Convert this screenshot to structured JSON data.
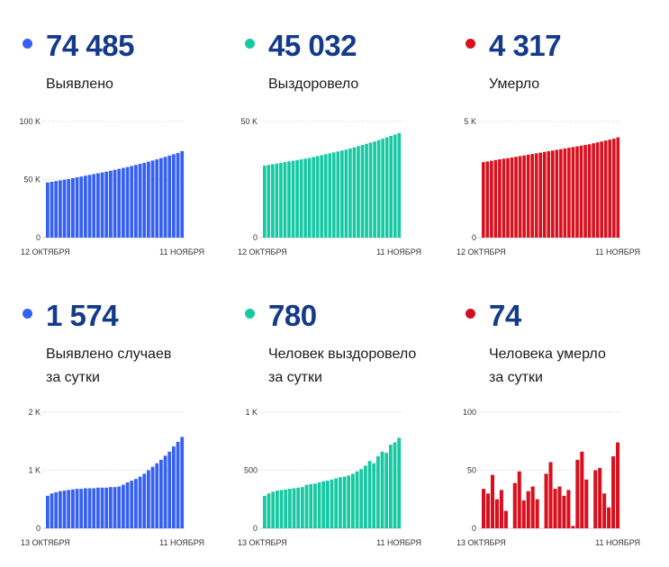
{
  "panels": [
    {
      "id": "cases-total",
      "color": "#3560f0",
      "value": "74 485",
      "label": [
        "Выявлено"
      ],
      "chart_data": {
        "type": "bar",
        "ylim": [
          0,
          100000
        ],
        "y_ticks": [
          {
            "value": 0,
            "label": "0"
          },
          {
            "value": 50000,
            "label": "50 K"
          },
          {
            "value": 100000,
            "label": "100 K"
          }
        ],
        "x_labels": [
          "12 ОКТЯБРЯ",
          "11 НОЯБРЯ"
        ],
        "values": [
          47500,
          48100,
          48700,
          49300,
          49900,
          50500,
          51200,
          51900,
          52600,
          53300,
          54000,
          54700,
          55400,
          56100,
          56800,
          57600,
          58400,
          59200,
          60000,
          60800,
          61700,
          62600,
          63500,
          64400,
          65400,
          66400,
          67400,
          68500,
          69600,
          70700,
          71800,
          72900,
          74485
        ]
      }
    },
    {
      "id": "recovered-total",
      "color": "#16c9a3",
      "value": "45 032",
      "label": [
        "Выздоровело"
      ],
      "chart_data": {
        "type": "bar",
        "ylim": [
          0,
          50000
        ],
        "y_ticks": [
          {
            "value": 0,
            "label": "0"
          },
          {
            "value": 50000,
            "label": "50 K"
          }
        ],
        "x_labels": [
          "12 ОКТЯБРЯ",
          "11 НОЯБРЯ"
        ],
        "values": [
          31000,
          31300,
          31600,
          31900,
          32200,
          32500,
          32800,
          33100,
          33400,
          33700,
          34000,
          34300,
          34700,
          35100,
          35500,
          35900,
          36300,
          36700,
          37100,
          37500,
          37900,
          38400,
          38900,
          39400,
          39900,
          40400,
          40900,
          41400,
          42000,
          42600,
          43200,
          43800,
          44400,
          45032
        ]
      }
    },
    {
      "id": "deaths-total",
      "color": "#d7101e",
      "value": "4 317",
      "label": [
        "Умерло"
      ],
      "chart_data": {
        "type": "bar",
        "ylim": [
          0,
          5000
        ],
        "y_ticks": [
          {
            "value": 0,
            "label": "0"
          },
          {
            "value": 5000,
            "label": "5 K"
          }
        ],
        "x_labels": [
          "12 ОКТЯБРЯ",
          "11 НОЯБРЯ"
        ],
        "values": [
          3250,
          3280,
          3310,
          3340,
          3370,
          3400,
          3420,
          3450,
          3480,
          3510,
          3540,
          3570,
          3600,
          3630,
          3660,
          3690,
          3720,
          3750,
          3780,
          3810,
          3840,
          3870,
          3900,
          3930,
          3960,
          3990,
          4020,
          4060,
          4100,
          4140,
          4180,
          4220,
          4260,
          4317
        ]
      }
    },
    {
      "id": "cases-daily",
      "color": "#3560f0",
      "value": "1 574",
      "label": [
        "Выявлено случаев",
        "за сутки"
      ],
      "chart_data": {
        "type": "bar",
        "ylim": [
          0,
          2000
        ],
        "y_ticks": [
          {
            "value": 0,
            "label": "0"
          },
          {
            "value": 1000,
            "label": "1 K"
          },
          {
            "value": 2000,
            "label": "2 K"
          }
        ],
        "x_labels": [
          "13 ОКТЯБРЯ",
          "11 НОЯБРЯ"
        ],
        "values": [
          560,
          600,
          620,
          640,
          650,
          660,
          670,
          680,
          680,
          690,
          690,
          690,
          700,
          700,
          700,
          710,
          710,
          720,
          750,
          790,
          820,
          850,
          890,
          940,
          1000,
          1060,
          1120,
          1180,
          1250,
          1320,
          1410,
          1490,
          1574
        ]
      }
    },
    {
      "id": "recovered-daily",
      "color": "#16c9a3",
      "value": "780",
      "label": [
        "Человек выздоровело",
        "за сутки"
      ],
      "chart_data": {
        "type": "bar",
        "ylim": [
          0,
          1000
        ],
        "y_ticks": [
          {
            "value": 0,
            "label": "0"
          },
          {
            "value": 500,
            "label": "500"
          },
          {
            "value": 1000,
            "label": "1 K"
          }
        ],
        "x_labels": [
          "13 ОКТЯБРЯ",
          "11 НОЯБРЯ"
        ],
        "values": [
          280,
          300,
          315,
          325,
          330,
          335,
          340,
          345,
          350,
          355,
          375,
          380,
          385,
          395,
          405,
          410,
          420,
          430,
          440,
          445,
          455,
          470,
          490,
          510,
          540,
          580,
          560,
          620,
          660,
          650,
          720,
          740,
          780
        ]
      }
    },
    {
      "id": "deaths-daily",
      "color": "#d7101e",
      "value": "74",
      "label": [
        "Человека умерло",
        "за сутки"
      ],
      "chart_data": {
        "type": "bar",
        "ylim": [
          0,
          100
        ],
        "y_ticks": [
          {
            "value": 0,
            "label": "0"
          },
          {
            "value": 50,
            "label": "50"
          },
          {
            "value": 100,
            "label": "100"
          }
        ],
        "x_labels": [
          "13 ОКТЯБРЯ",
          "11 НОЯБРЯ"
        ],
        "values": [
          34,
          30,
          46,
          25,
          33,
          15,
          0,
          39,
          49,
          24,
          32,
          36,
          25,
          0,
          47,
          57,
          34,
          36,
          28,
          33,
          2,
          59,
          66,
          42,
          0,
          50,
          52,
          30,
          18,
          62,
          74
        ]
      }
    }
  ]
}
